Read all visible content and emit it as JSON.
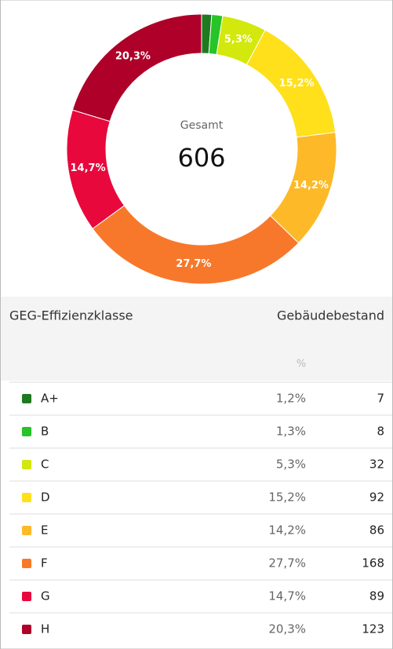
{
  "chart_data": {
    "type": "donut",
    "center_title": "Gesamt",
    "center_value": 606,
    "categories": [
      "A+",
      "B",
      "C",
      "D",
      "E",
      "F",
      "G",
      "H"
    ],
    "values": [
      1.2,
      1.3,
      5.3,
      15.2,
      14.2,
      27.7,
      14.7,
      20.3
    ],
    "value_labels": [
      "1,2%",
      "1,3%",
      "5,3%",
      "15,2%",
      "14,2%",
      "27,7%",
      "14,7%",
      "20,3%"
    ],
    "colors": [
      "#1f7a1f",
      "#27c427",
      "#d3e80c",
      "#ffe01a",
      "#fdb928",
      "#f7782b",
      "#e8083c",
      "#ae0029"
    ]
  },
  "table": {
    "header": [
      "GEG-Effizienzklasse",
      "Gebäudebestand"
    ],
    "unit": "%",
    "counts": [
      7,
      8,
      32,
      92,
      86,
      168,
      89,
      123
    ]
  }
}
